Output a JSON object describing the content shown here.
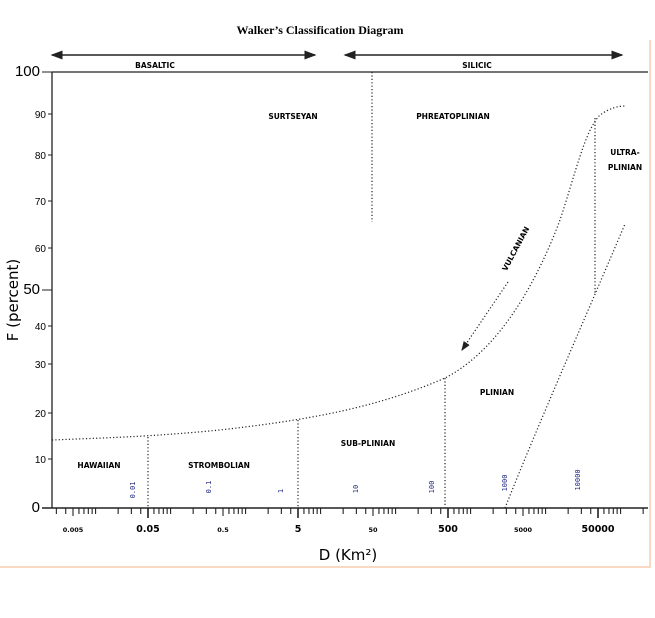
{
  "title": "Walker’s Classification Diagram",
  "groups": {
    "basaltic": "BASALTIC",
    "silicic": "SILICIC"
  },
  "y_axis": {
    "label": "F (percent)",
    "ticks": [
      "100",
      "90",
      "80",
      "70",
      "60",
      "50",
      "40",
      "30",
      "20",
      "10",
      "0"
    ]
  },
  "x_axis": {
    "label": "D (Km²)",
    "ticks": [
      "0.005",
      "0.05",
      "0.5",
      "5",
      "50",
      "500",
      "5000",
      "50000"
    ]
  },
  "fields": {
    "surtseyan": "SURTSEYAN",
    "phreatoplinian": "PHREATOPLINIAN",
    "ultra1": "ULTRA-",
    "ultra2": "PLINIAN",
    "plinian": "PLINIAN",
    "subplinian": "SUB-PLINIAN",
    "hawaiian": "HAWAIIAN",
    "strombolian": "STROMBOLIAN",
    "vulcanian": "VULCANIAN"
  },
  "inner_labels": [
    "0.01",
    "0.1",
    "1",
    "10",
    "100",
    "1000",
    "10000"
  ],
  "colors": {
    "frame": "#f8cbad",
    "inner_labels": "#1a237e"
  }
}
